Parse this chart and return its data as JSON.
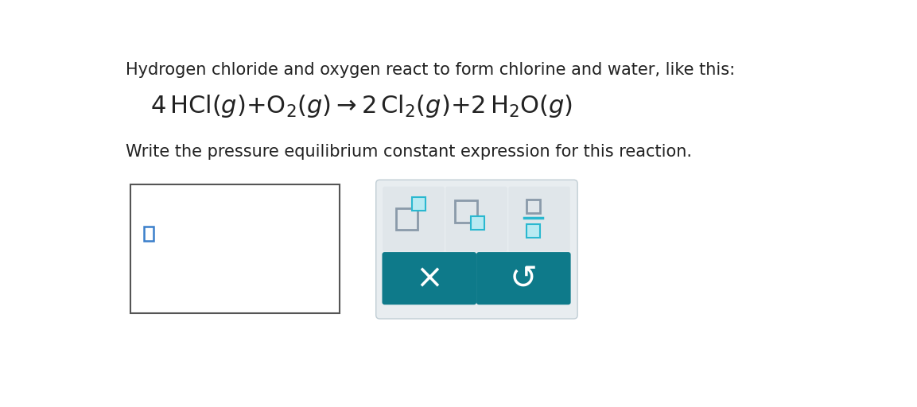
{
  "bg_color": "#ffffff",
  "text_color": "#222222",
  "line1": "Hydrogen chloride and oxygen react to form chlorine and water, like this:",
  "line3": "Write the pressure equilibrium constant expression for this reaction.",
  "input_box_border": "#555555",
  "input_box_bg": "#ffffff",
  "icon_gray_box": "#8a9aaa",
  "icon_teal_box_fill": "#b8eaf2",
  "icon_teal_box_edge": "#2ab8d0",
  "icon_teal_line": "#2ab8d0",
  "panel_bg": "#e8edf0",
  "panel_border": "#c0cdd4",
  "teal_button": "#0e7a8a",
  "teal_button_text": "#ffffff",
  "cursor_color": "#3a7fcb",
  "line1_fontsize": 15,
  "eq_fontsize": 22,
  "line3_fontsize": 15
}
